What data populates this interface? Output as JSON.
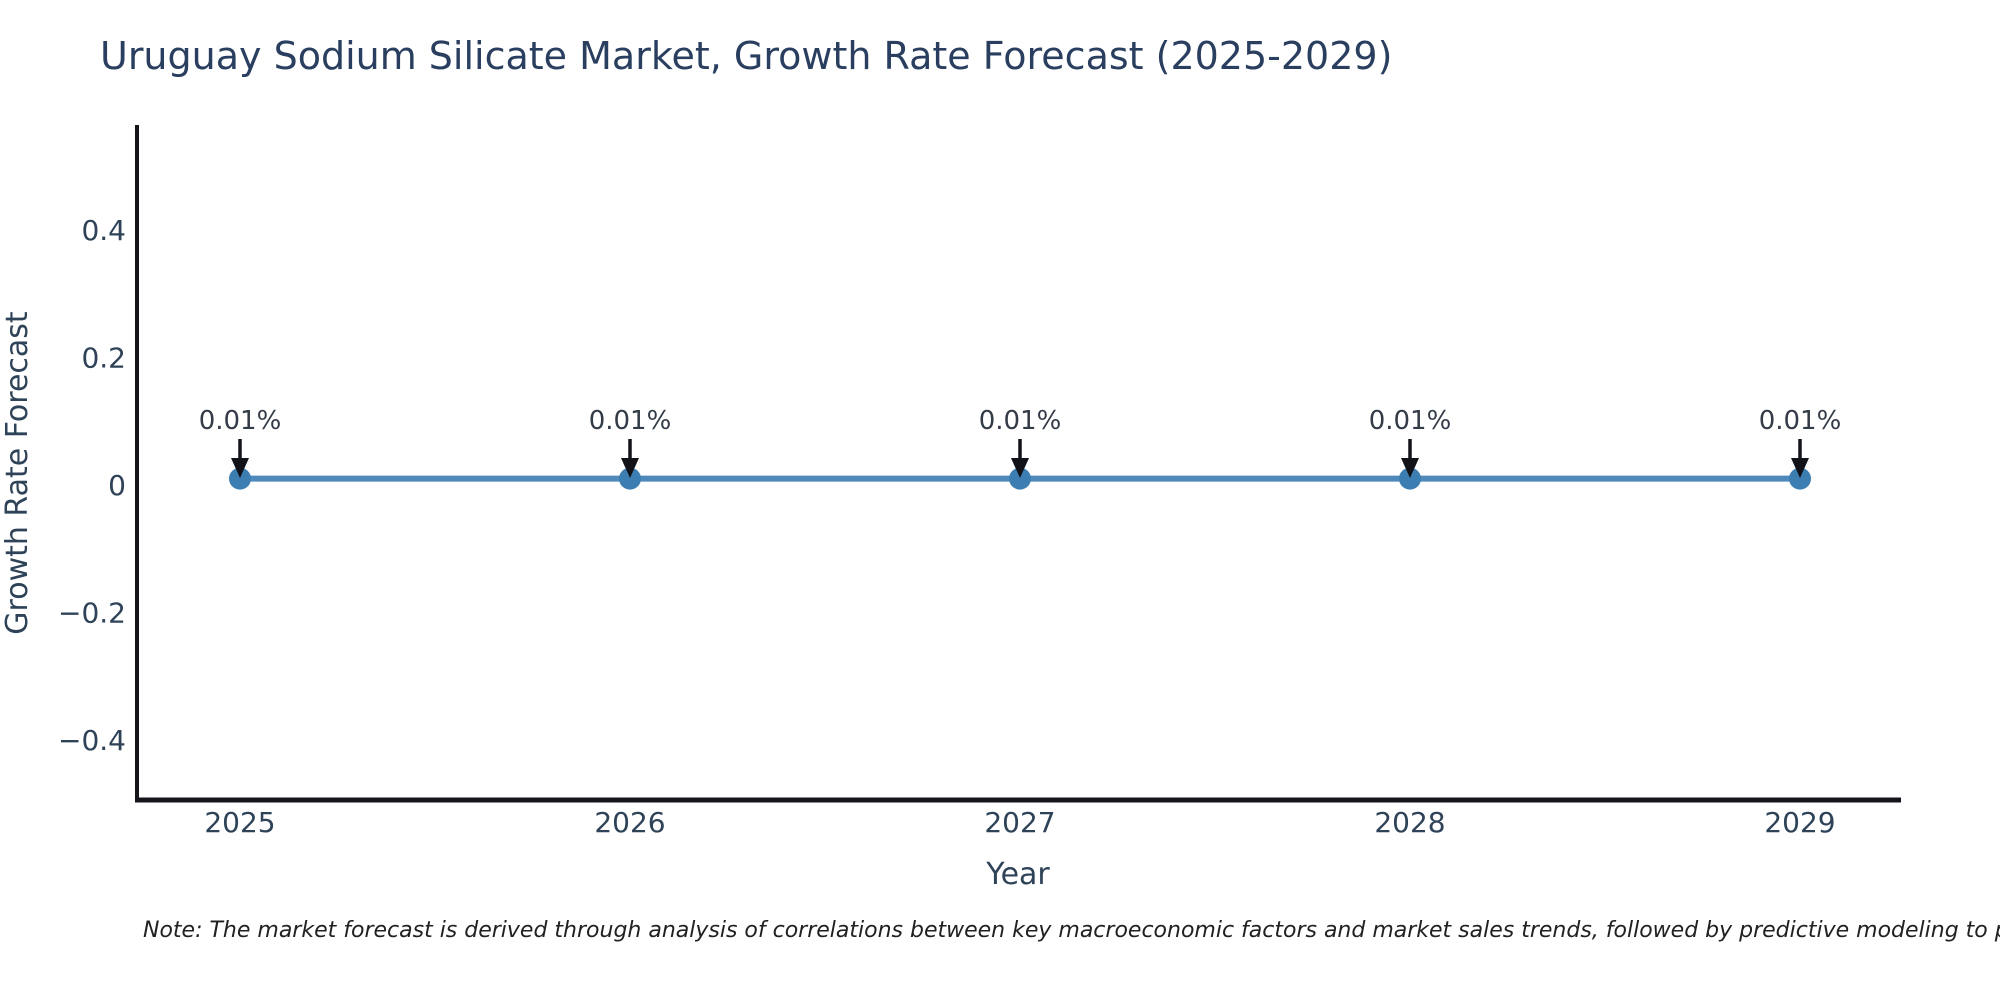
{
  "title": "Uruguay Sodium Silicate Market, Growth Rate Forecast (2025-2029)",
  "note": "Note: The market forecast is derived through analysis of correlations between key macroeconomic factors and market sales trends, followed by predictive modeling to project future sales.",
  "chart_data": {
    "type": "line",
    "title": "Uruguay Sodium Silicate Market, Growth Rate Forecast (2025-2029)",
    "xlabel": "Year",
    "ylabel": "Growth Rate Forecast",
    "categories": [
      "2025",
      "2026",
      "2027",
      "2028",
      "2029"
    ],
    "series": [
      {
        "name": "Growth Rate Forecast",
        "values": [
          0.01,
          0.01,
          0.01,
          0.01,
          0.01
        ]
      }
    ],
    "point_labels": [
      "0.01%",
      "0.01%",
      "0.01%",
      "0.01%",
      "0.01%"
    ],
    "yticks": {
      "values": [
        0.4,
        0.2,
        0,
        -0.2,
        -0.4
      ],
      "labels": [
        "0.4",
        "0.2",
        "0",
        "−0.2",
        "−0.4"
      ]
    },
    "ylim": [
      -0.49,
      0.56
    ],
    "grid": false,
    "legend": "none",
    "marker_style": "circle",
    "annotation_arrows": "down-to-point",
    "colors": {
      "line": "#4f88ba",
      "marker": "#3d7eb2",
      "arrow": "#111318",
      "spine": "#14161c",
      "tick_text": "#2e4258",
      "title_text": "#2a3f5f",
      "annotation_text": "#333b47",
      "note_text": "#212121",
      "background": "#ffffff"
    }
  }
}
